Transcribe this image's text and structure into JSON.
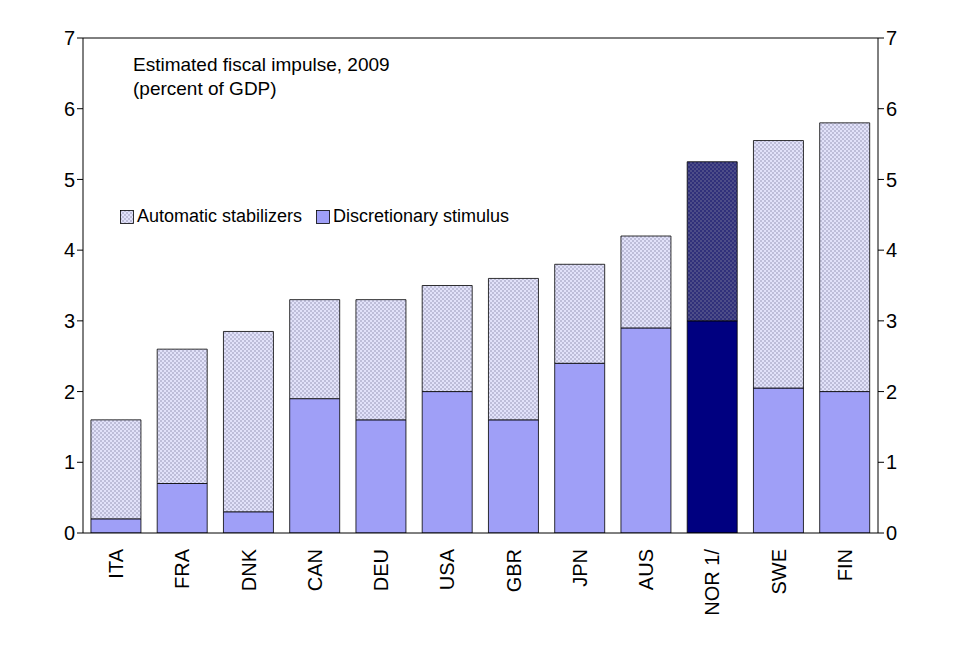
{
  "chart_data": {
    "type": "bar",
    "title": "Estimated fiscal impulse, 2009",
    "subtitle": "(percent of GDP)",
    "categories": [
      "ITA",
      "FRA",
      "DNK",
      "CAN",
      "DEU",
      "USA",
      "GBR",
      "JPN",
      "AUS",
      "NOR 1/",
      "SWE",
      "FIN"
    ],
    "stacked": true,
    "series": [
      {
        "name": "Discretionary stimulus",
        "color": "#9f9ff7",
        "colors": [
          "#9f9ff7",
          "#9f9ff7",
          "#9f9ff7",
          "#9f9ff7",
          "#9f9ff7",
          "#9f9ff7",
          "#9f9ff7",
          "#9f9ff7",
          "#9f9ff7",
          "#000080",
          "#9f9ff7",
          "#9f9ff7"
        ],
        "values": [
          0.2,
          0.7,
          0.3,
          1.9,
          1.6,
          2.0,
          1.6,
          2.4,
          2.9,
          3.0,
          2.05,
          2.0
        ]
      },
      {
        "name": "Automatic stabilizers",
        "color": "#e2e2fa",
        "colors": [
          "#e2e2fa",
          "#e2e2fa",
          "#e2e2fa",
          "#e2e2fa",
          "#e2e2fa",
          "#e2e2fa",
          "#e2e2fa",
          "#e2e2fa",
          "#e2e2fa",
          "#30307a",
          "#e2e2fa",
          "#e2e2fa"
        ],
        "values": [
          1.4,
          1.9,
          2.55,
          1.4,
          1.7,
          1.5,
          2.0,
          1.4,
          1.3,
          2.25,
          3.5,
          3.8
        ]
      }
    ],
    "ylim": [
      0,
      7
    ],
    "yticks": [
      0,
      1,
      2,
      3,
      4,
      5,
      6,
      7
    ],
    "y2lim": [
      0,
      7
    ],
    "y2ticks": [
      0,
      1,
      2,
      3,
      4,
      5,
      6,
      7
    ],
    "legend": "top-left",
    "grid": false
  }
}
